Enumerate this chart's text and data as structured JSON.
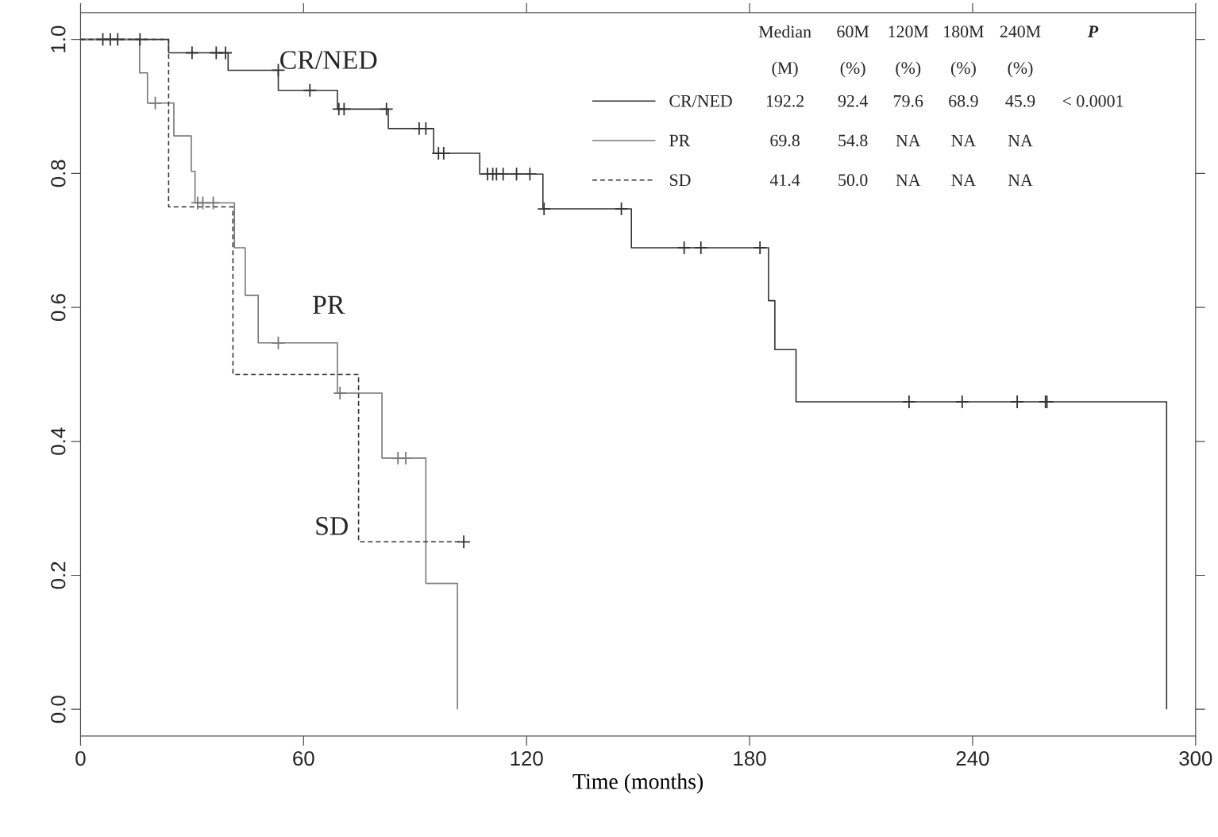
{
  "chart_data": {
    "type": "step",
    "xlabel": "Time (months)",
    "xlim": [
      0,
      300
    ],
    "ylim": [
      -0.04,
      1.04
    ],
    "xticks": [
      0,
      60,
      120,
      180,
      240,
      300
    ],
    "yticks": [
      {
        "value": 0,
        "label": "0.0"
      },
      {
        "value": 0.2,
        "label": "0.2"
      },
      {
        "value": 0.4,
        "label": "0.4"
      },
      {
        "value": 0.6,
        "label": "0.6"
      },
      {
        "value": 0.8,
        "label": "0.8"
      },
      {
        "value": 1,
        "label": "1.0"
      }
    ],
    "legend": "top right",
    "series": [
      {
        "name": "CR/NED",
        "color": "#333333",
        "line_style": "solid",
        "x": [
          0,
          23.7,
          39.7,
          53.2,
          69.1,
          82.8,
          95.0,
          107.4,
          124.4,
          148.2,
          185.1,
          186.8,
          192.5,
          292.2
        ],
        "values": [
          1.0,
          0.98,
          0.954,
          0.924,
          0.896,
          0.867,
          0.83,
          0.799,
          0.747,
          0.689,
          0.61,
          0.537,
          0.459,
          0
        ]
      },
      {
        "name": "PR",
        "color": "#777777",
        "line_style": "solid",
        "x": [
          0,
          15.9,
          18.0,
          25.1,
          29.8,
          30.8,
          41.4,
          44.3,
          47.8,
          69.1,
          81.1,
          92.9,
          101.4
        ],
        "values": [
          1.0,
          0.95,
          0.905,
          0.856,
          0.803,
          0.756,
          0.689,
          0.618,
          0.547,
          0.472,
          0.375,
          0.188,
          0
        ]
      },
      {
        "name": "SD",
        "color": "#333333",
        "line_style": "dashed",
        "x": [
          0,
          23.7,
          41.0,
          74.8,
          103.1
        ],
        "values": [
          1.0,
          0.75,
          0.5,
          0.25,
          0.25
        ]
      },
      {
        "type": "scatter",
        "marker": "cross",
        "color": "#333333",
        "x": [
          6,
          8,
          10,
          30,
          36.5,
          39,
          53.2,
          61.7,
          69.5,
          70.9,
          82.3,
          91.1,
          92.9,
          96.3,
          97.7,
          109.5,
          110.9,
          111.9,
          113.7,
          117.3,
          120.9,
          124.7,
          145.5,
          162.4,
          166.9,
          182.8,
          222.9,
          237.2,
          252,
          259.6,
          260
        ],
        "values": [
          1,
          1,
          1,
          0.98,
          0.98,
          0.98,
          0.954,
          0.924,
          0.896,
          0.896,
          0.896,
          0.867,
          0.867,
          0.83,
          0.83,
          0.799,
          0.799,
          0.799,
          0.799,
          0.799,
          0.799,
          0.747,
          0.747,
          0.689,
          0.689,
          0.689,
          0.459,
          0.459,
          0.459,
          0.459,
          0.459
        ]
      },
      {
        "type": "scatter",
        "marker": "cross",
        "color": "#777777",
        "x": [
          20.1,
          31.5,
          32.9,
          35.7,
          53.2,
          69.8,
          85.4,
          87.5
        ],
        "values": [
          0.905,
          0.756,
          0.756,
          0.756,
          0.547,
          0.472,
          0.375,
          0.375
        ]
      },
      {
        "type": "scatter",
        "marker": "cross",
        "color": "#333333",
        "x": [
          16,
          103.1
        ],
        "values": [
          1,
          0.25
        ]
      }
    ],
    "annotations": [
      "CR/NED",
      "PR",
      "SD",
      "Median",
      "60M",
      "120M",
      "180M",
      "240M",
      "P",
      "(M)",
      "(%)",
      "(%)",
      "(%)",
      "(%)",
      "192.2",
      "92.4",
      "79.6",
      "68.9",
      "45.9",
      "< 0.0001",
      "69.8",
      "54.8",
      "NA",
      "NA",
      "NA",
      "41.4",
      "50.0",
      "NA",
      "NA",
      "NA"
    ]
  }
}
